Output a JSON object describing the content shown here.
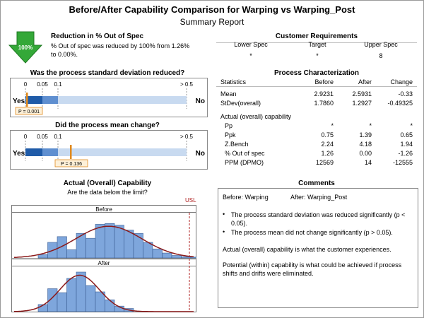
{
  "header": {
    "title": "Before/After Capability Comparison for Warping vs Warping_Post",
    "subtitle": "Summary Report"
  },
  "reduction": {
    "arrow_label": "100%",
    "heading": "Reduction in % Out of Spec",
    "text_line1": "% Out of spec was reduced by 100% from 1.26%",
    "text_line2": "to 0.00%."
  },
  "std_test": {
    "question": "Was the process standard deviation reduced?",
    "ticks": [
      "0",
      "0.05",
      "0.1",
      "> 0.5"
    ],
    "yes": "Yes",
    "no": "No",
    "p_label": "P = 0.001",
    "p_value": 0.001
  },
  "mean_test": {
    "question": "Did the process mean change?",
    "ticks": [
      "0",
      "0.05",
      "0.1",
      "> 0.5"
    ],
    "yes": "Yes",
    "no": "No",
    "p_label": "P = 0.136",
    "p_value": 0.136
  },
  "capability": {
    "heading": "Actual (Overall) Capability",
    "subheading": "Are the data below the limit?",
    "usl_label": "USL",
    "panel_before": "Before",
    "panel_after": "After"
  },
  "customer_requirements": {
    "heading": "Customer Requirements",
    "columns": [
      "Lower Spec",
      "Target",
      "Upper Spec"
    ],
    "values": [
      "*",
      "*",
      "8"
    ]
  },
  "process_characterization": {
    "heading": "Process Characterization",
    "columns": [
      "Statistics",
      "Before",
      "After",
      "Change"
    ],
    "rows1": [
      [
        "Mean",
        "2.9231",
        "2.5931",
        "-0.33"
      ],
      [
        "StDev(overall)",
        "1.7860",
        "1.2927",
        "-0.49325"
      ]
    ],
    "subheading": "Actual (overall) capability",
    "rows2": [
      [
        "Pp",
        "*",
        "*",
        "*"
      ],
      [
        "Ppk",
        "0.75",
        "1.39",
        "0.65"
      ],
      [
        "Z.Bench",
        "2.24",
        "4.18",
        "1.94"
      ],
      [
        "% Out of spec",
        "1.26",
        "0.00",
        "-1.26"
      ],
      [
        "PPM (DPMO)",
        "12569",
        "14",
        "-12555"
      ]
    ]
  },
  "comments": {
    "heading": "Comments",
    "line_before": "Before: Warping",
    "line_after": "After: Warping_Post",
    "bullet1": "The process standard deviation was reduced significantly (p < 0.05).",
    "bullet2": "The process mean did not change significantly (p > 0.05).",
    "para1": "Actual (overall) capability is what the customer experiences.",
    "para2": "Potential (within) capability is what could be achieved if process shifts and drifts were eliminated."
  },
  "colors": {
    "bar_fill": "#7ea6dc",
    "bar_stroke": "#3d5f93",
    "curve": "#8b1a1a",
    "usl_line": "#b02020",
    "dark_blue": "#1f5ba8",
    "mid_blue": "#5f8fd0",
    "light_blue": "#c8daf0",
    "marker": "#e08a1e",
    "arrow_green": "#34a838"
  },
  "chart_data": [
    {
      "type": "bar",
      "panel": "Before",
      "values": [
        8,
        38,
        52,
        20,
        60,
        48,
        82,
        84,
        80,
        68,
        60,
        38,
        22,
        12,
        6,
        3,
        2,
        10
      ],
      "ylim": [
        0,
        100
      ]
    },
    {
      "type": "bar",
      "panel": "After",
      "values": [
        18,
        58,
        48,
        84,
        100,
        66,
        50,
        30,
        14,
        8
      ],
      "ylim": [
        0,
        100
      ]
    }
  ]
}
